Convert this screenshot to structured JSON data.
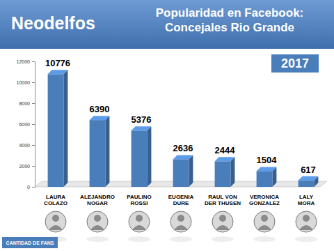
{
  "chart_data": {
    "type": "bar",
    "title": "Popularidad en Facebook: Concejales Rio Grande",
    "subtitle": "2017",
    "annotations": [
      "Neodelfos",
      "CANTIDAD DE FANS"
    ],
    "categories": [
      "LAURA COLAZO",
      "ALEJANDRO NOGAR",
      "PAULINO ROSSI",
      "EUGENIA DURE",
      "RAUL VON DER THUSEN",
      "VERONICA GONZALEZ",
      "LALY MORA"
    ],
    "values": [
      10776,
      6390,
      5376,
      2636,
      2444,
      1504,
      617
    ],
    "color": "#4a7ebb",
    "ylim": [
      0,
      12000
    ],
    "yticks": [
      0,
      2000,
      4000,
      6000,
      8000,
      10000,
      12000
    ],
    "grid": false,
    "data_labels": true
  }
}
